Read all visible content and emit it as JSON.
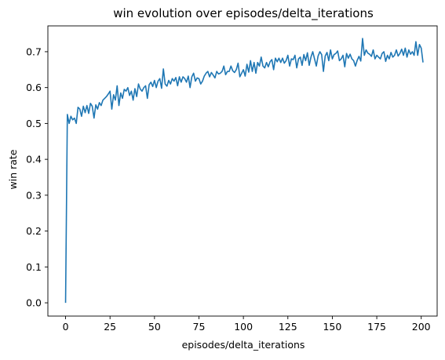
{
  "chart_data": {
    "type": "line",
    "title": "win evolution over episodes/delta_iterations",
    "xlabel": "episodes/delta_iterations",
    "ylabel": "win rate",
    "xlim": [
      -9.95,
      208.95
    ],
    "ylim": [
      -0.037,
      0.772
    ],
    "xticks": [
      0,
      25,
      50,
      75,
      100,
      125,
      150,
      175,
      200
    ],
    "yticks": [
      0.0,
      0.1,
      0.2,
      0.3,
      0.4,
      0.5,
      0.6,
      0.7
    ],
    "xtick_labels": [
      "0",
      "25",
      "50",
      "75",
      "100",
      "125",
      "150",
      "175",
      "200"
    ],
    "ytick_labels": [
      "0.0",
      "0.1",
      "0.2",
      "0.3",
      "0.4",
      "0.5",
      "0.6",
      "0.7"
    ],
    "grid": false,
    "line_color": "#1f77b4",
    "series": [
      {
        "x_start": 0,
        "x_step": 1,
        "values": [
          0.0,
          0.525,
          0.5,
          0.52,
          0.51,
          0.515,
          0.5,
          0.545,
          0.54,
          0.52,
          0.548,
          0.53,
          0.55,
          0.528,
          0.556,
          0.548,
          0.515,
          0.552,
          0.54,
          0.558,
          0.55,
          0.565,
          0.57,
          0.575,
          0.582,
          0.59,
          0.54,
          0.58,
          0.565,
          0.605,
          0.55,
          0.585,
          0.57,
          0.595,
          0.59,
          0.6,
          0.578,
          0.59,
          0.565,
          0.597,
          0.575,
          0.61,
          0.596,
          0.59,
          0.6,
          0.605,
          0.57,
          0.608,
          0.615,
          0.603,
          0.62,
          0.6,
          0.618,
          0.625,
          0.598,
          0.652,
          0.61,
          0.604,
          0.62,
          0.61,
          0.625,
          0.618,
          0.628,
          0.605,
          0.63,
          0.615,
          0.63,
          0.625,
          0.615,
          0.632,
          0.6,
          0.63,
          0.64,
          0.618,
          0.627,
          0.625,
          0.61,
          0.618,
          0.632,
          0.64,
          0.645,
          0.63,
          0.642,
          0.635,
          0.627,
          0.645,
          0.638,
          0.64,
          0.645,
          0.66,
          0.636,
          0.645,
          0.645,
          0.66,
          0.647,
          0.642,
          0.65,
          0.668,
          0.63,
          0.64,
          0.65,
          0.632,
          0.665,
          0.643,
          0.675,
          0.645,
          0.67,
          0.64,
          0.67,
          0.66,
          0.685,
          0.66,
          0.655,
          0.67,
          0.658,
          0.672,
          0.678,
          0.65,
          0.682,
          0.672,
          0.682,
          0.67,
          0.682,
          0.668,
          0.675,
          0.69,
          0.66,
          0.68,
          0.678,
          0.69,
          0.655,
          0.68,
          0.685,
          0.662,
          0.692,
          0.675,
          0.697,
          0.662,
          0.685,
          0.7,
          0.68,
          0.66,
          0.688,
          0.7,
          0.692,
          0.645,
          0.688,
          0.698,
          0.675,
          0.705,
          0.68,
          0.692,
          0.695,
          0.702,
          0.675,
          0.68,
          0.69,
          0.658,
          0.695,
          0.682,
          0.693,
          0.68,
          0.675,
          0.66,
          0.676,
          0.687,
          0.674,
          0.737,
          0.69,
          0.705,
          0.696,
          0.693,
          0.687,
          0.705,
          0.68,
          0.69,
          0.685,
          0.68,
          0.695,
          0.7,
          0.673,
          0.69,
          0.68,
          0.698,
          0.685,
          0.69,
          0.705,
          0.688,
          0.695,
          0.707,
          0.69,
          0.71,
          0.685,
          0.705,
          0.693,
          0.7,
          0.69,
          0.728,
          0.69,
          0.72,
          0.71,
          0.67
        ]
      }
    ]
  }
}
